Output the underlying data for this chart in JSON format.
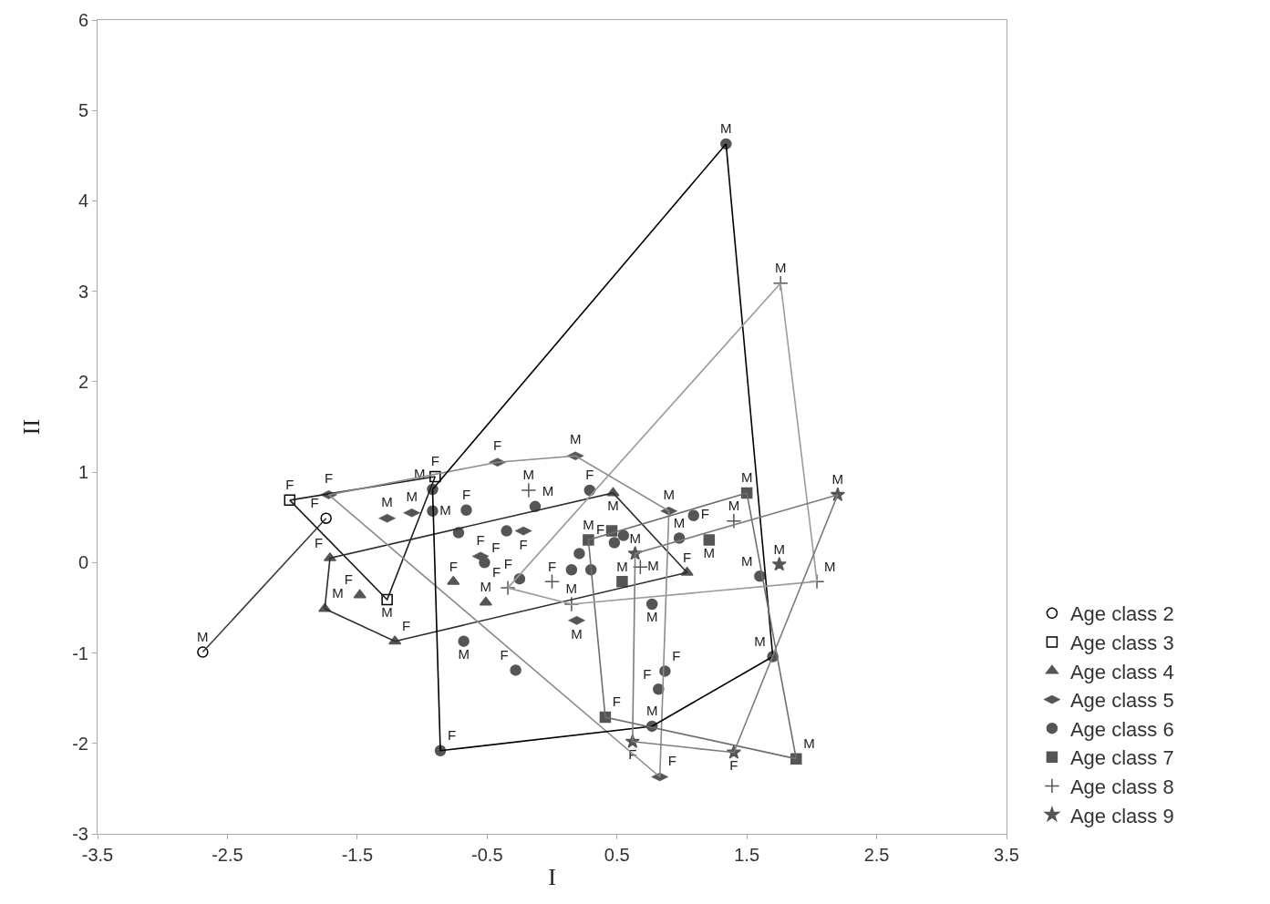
{
  "chart_data": {
    "type": "scatter",
    "xlabel": "I",
    "ylabel": "II",
    "xlim": [
      -3.5,
      3.5
    ],
    "ylim": [
      -3,
      6
    ],
    "xticks": [
      -3.5,
      -2.5,
      -1.5,
      -0.5,
      0.5,
      1.5,
      2.5,
      3.5
    ],
    "yticks": [
      -3,
      -2,
      -1,
      0,
      1,
      2,
      3,
      4,
      5,
      6
    ],
    "grid": false,
    "legend": "bottom right",
    "line_style": "solid",
    "series": [
      {
        "type": "scatter",
        "name": "Age class 2",
        "color": "#000000",
        "marker": "circle-open",
        "x": [
          -2.69,
          -1.74
        ],
        "values": [
          -0.99,
          0.49
        ],
        "value_labels": [
          "M",
          "F"
        ]
      },
      {
        "type": "scatter",
        "name": "Age class 3",
        "color": "#000000",
        "marker": "square-open",
        "x": [
          -2.02,
          -1.27,
          -0.9
        ],
        "values": [
          0.69,
          -0.41,
          0.95
        ],
        "value_labels": [
          "F",
          "M",
          "F"
        ]
      },
      {
        "type": "scatter",
        "name": "Age class 4",
        "color": "#555555",
        "marker": "triangle",
        "x": [
          -1.71,
          -1.75,
          -1.48,
          -1.21,
          -0.76,
          -0.51,
          0.47,
          1.04
        ],
        "values": [
          0.05,
          -0.51,
          -0.36,
          -0.87,
          -0.21,
          -0.44,
          0.77,
          -0.11
        ],
        "value_labels": [
          "F",
          "M",
          "F",
          "F",
          "F",
          "M",
          "M",
          "F"
        ]
      },
      {
        "type": "scatter",
        "name": "Age class 5",
        "color": "#555555",
        "x": [
          -1.72,
          -1.27,
          -1.08,
          -0.42,
          0.18,
          -0.55,
          -0.22,
          0.19,
          0.9,
          0.83
        ],
        "values": [
          0.75,
          0.49,
          0.55,
          1.11,
          1.18,
          0.07,
          0.35,
          -0.64,
          0.57,
          -2.37
        ],
        "value_labels": [
          "F",
          "M",
          "M",
          "F",
          "M",
          "F",
          "F",
          "M",
          "M",
          "F"
        ]
      },
      {
        "type": "scatter",
        "name": "Age class 6",
        "color": "#555555",
        "marker": "circle",
        "x": [
          1.34,
          -0.92,
          -0.92,
          -0.72,
          -0.66,
          -0.52,
          -0.35,
          -0.25,
          -0.13,
          0.15,
          0.3,
          0.21,
          0.29,
          0.48,
          0.55,
          0.98,
          1.09,
          1.6,
          1.7,
          0.77,
          0.82,
          0.87,
          0.77,
          -0.28,
          -0.68,
          -0.86
        ],
        "values": [
          4.63,
          0.81,
          0.57,
          0.33,
          0.58,
          0.0,
          0.35,
          -0.18,
          0.62,
          -0.08,
          -0.08,
          0.1,
          0.8,
          0.22,
          0.3,
          0.27,
          0.52,
          -0.15,
          -1.04,
          -1.81,
          -1.4,
          -1.2,
          -0.46,
          -1.19,
          -0.87,
          -2.08
        ],
        "value_labels": [
          "M",
          "M",
          "M",
          null,
          "F",
          "F",
          null,
          "F",
          "M",
          null,
          null,
          null,
          "F",
          null,
          null,
          "M",
          "F",
          "M",
          "M",
          "M",
          "F",
          "F",
          "M",
          "F",
          "M",
          "F"
        ]
      },
      {
        "type": "scatter",
        "name": "Age class 7",
        "color": "#555555",
        "marker": "square",
        "x": [
          1.5,
          1.21,
          0.28,
          0.54,
          1.88,
          0.41,
          0.46
        ],
        "values": [
          0.77,
          0.25,
          0.25,
          -0.21,
          -2.17,
          -1.71,
          0.35
        ],
        "value_labels": [
          "M",
          "M",
          "M",
          "M",
          "M",
          "F",
          "F"
        ]
      },
      {
        "type": "scatter",
        "name": "Age class 8",
        "color": "#555555",
        "marker": "cross",
        "x": [
          1.76,
          2.04,
          1.4,
          0.15,
          -0.34,
          0.0,
          -0.18,
          0.68
        ],
        "values": [
          3.09,
          -0.21,
          0.46,
          -0.46,
          -0.28,
          -0.21,
          0.8,
          -0.05
        ],
        "value_labels": [
          "M",
          "M",
          "M",
          "M",
          "F",
          "F",
          "M",
          "M"
        ]
      },
      {
        "type": "scatter",
        "name": "Age class 9",
        "color": "#555555",
        "marker": "star",
        "x": [
          2.2,
          1.75,
          1.4,
          0.62,
          0.64
        ],
        "values": [
          0.75,
          -0.02,
          -2.1,
          -1.98,
          0.1
        ],
        "value_labels": [
          "M",
          "M",
          "F",
          "F",
          "M"
        ]
      },
      {
        "type": "line",
        "color": "#3c3c3c",
        "marker": "none",
        "x": [
          -2.69,
          -1.74
        ],
        "values": [
          -0.99,
          0.49
        ]
      },
      {
        "type": "line",
        "color": "#1e1e1e",
        "marker": "none",
        "x": [
          -2.02,
          -0.9
        ],
        "values": [
          0.69,
          0.95
        ]
      },
      {
        "type": "line",
        "color": "#1e1e1e",
        "marker": "none",
        "x": [
          -2.02,
          -1.27,
          -0.9
        ],
        "values": [
          0.69,
          -0.41,
          0.95
        ]
      },
      {
        "type": "line",
        "color": "#2d2d2d",
        "marker": "none",
        "x": [
          -1.75,
          -1.71,
          0.47,
          1.04
        ],
        "values": [
          -0.51,
          0.05,
          0.77,
          -0.11
        ]
      },
      {
        "type": "line",
        "color": "#2d2d2d",
        "marker": "none",
        "x": [
          -1.75,
          -1.21,
          1.04
        ],
        "values": [
          -0.51,
          -0.87,
          -0.11
        ]
      },
      {
        "type": "line",
        "color": "#8c8c8c",
        "marker": "none",
        "x": [
          -1.72,
          -0.42,
          0.18,
          0.9
        ],
        "values": [
          0.75,
          1.11,
          1.18,
          0.57
        ]
      },
      {
        "type": "line",
        "color": "#8c8c8c",
        "marker": "none",
        "x": [
          -1.72,
          0.83,
          0.9
        ],
        "values": [
          0.75,
          -2.37,
          0.57
        ]
      },
      {
        "type": "line",
        "color": "#000000",
        "marker": "none",
        "x": [
          -0.92,
          1.34,
          1.7
        ],
        "values": [
          0.81,
          4.63,
          -1.04
        ]
      },
      {
        "type": "line",
        "color": "#000000",
        "marker": "none",
        "x": [
          -0.92,
          -0.86,
          0.77,
          1.7
        ],
        "values": [
          0.81,
          -2.08,
          -1.81,
          -1.04
        ]
      },
      {
        "type": "line",
        "color": "#6e6e6e",
        "marker": "none",
        "x": [
          0.28,
          1.5,
          1.88
        ],
        "values": [
          0.25,
          0.77,
          -2.17
        ]
      },
      {
        "type": "line",
        "color": "#6e6e6e",
        "marker": "none",
        "x": [
          0.28,
          0.41,
          1.88
        ],
        "values": [
          0.25,
          -1.71,
          -2.17
        ]
      },
      {
        "type": "line",
        "color": "#9b9b9b",
        "marker": "none",
        "x": [
          -0.34,
          1.76,
          2.04
        ],
        "values": [
          -0.28,
          3.09,
          -0.21
        ]
      },
      {
        "type": "line",
        "color": "#9b9b9b",
        "marker": "none",
        "x": [
          -0.34,
          0.15,
          2.04
        ],
        "values": [
          -0.28,
          -0.46,
          -0.21
        ]
      },
      {
        "type": "line",
        "color": "#7d7d7d",
        "marker": "none",
        "x": [
          0.62,
          0.64,
          2.2
        ],
        "values": [
          -1.98,
          0.1,
          0.75
        ]
      },
      {
        "type": "line",
        "color": "#7d7d7d",
        "marker": "none",
        "x": [
          0.62,
          1.4,
          2.2
        ],
        "values": [
          -1.98,
          -2.1,
          0.75
        ]
      }
    ]
  }
}
